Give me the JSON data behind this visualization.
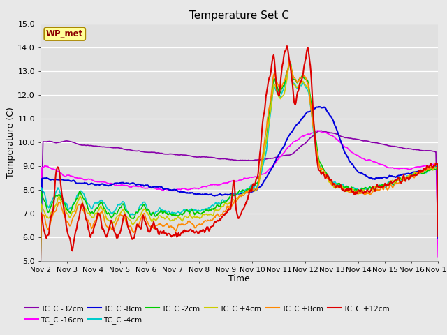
{
  "title": "Temperature Set C",
  "xlabel": "Time",
  "ylabel": "Temperature (C)",
  "ylim": [
    5.0,
    15.0
  ],
  "yticks": [
    5.0,
    6.0,
    7.0,
    8.0,
    9.0,
    10.0,
    11.0,
    12.0,
    13.0,
    14.0,
    15.0
  ],
  "xtick_labels": [
    "Nov 2",
    "Nov 3",
    "Nov 4",
    "Nov 5",
    "Nov 6",
    "Nov 7",
    "Nov 8",
    "Nov 9",
    "Nov 10",
    "Nov 11",
    "Nov 12",
    "Nov 13",
    "Nov 14",
    "Nov 15",
    "Nov 16",
    "Nov 17"
  ],
  "series_order": [
    "TC_C -32cm",
    "TC_C -16cm",
    "TC_C -8cm",
    "TC_C -4cm",
    "TC_C -2cm",
    "TC_C +4cm",
    "TC_C +8cm",
    "TC_C +12cm"
  ],
  "series": {
    "TC_C -32cm": {
      "color": "#8800aa",
      "lw": 1.2
    },
    "TC_C -16cm": {
      "color": "#ff00ff",
      "lw": 1.2
    },
    "TC_C -8cm": {
      "color": "#0000dd",
      "lw": 1.5
    },
    "TC_C -4cm": {
      "color": "#00cccc",
      "lw": 1.2
    },
    "TC_C -2cm": {
      "color": "#00cc00",
      "lw": 1.2
    },
    "TC_C +4cm": {
      "color": "#cccc00",
      "lw": 1.2
    },
    "TC_C +8cm": {
      "color": "#ff8800",
      "lw": 1.2
    },
    "TC_C +12cm": {
      "color": "#dd0000",
      "lw": 1.5
    }
  },
  "legend_labels": [
    "TC_C -32cm",
    "TC_C -16cm",
    "TC_C -8cm",
    "TC_C -4cm",
    "TC_C -2cm",
    "TC_C +4cm",
    "TC_C +8cm",
    "TC_C +12cm"
  ],
  "wp_met_box_facecolor": "#ffff99",
  "wp_met_text_color": "#8b0000",
  "wp_met_edge_color": "#aa8800",
  "background_color": "#e0e0e0",
  "fig_facecolor": "#e8e8e8",
  "grid_color": "#ffffff",
  "n_points": 720
}
